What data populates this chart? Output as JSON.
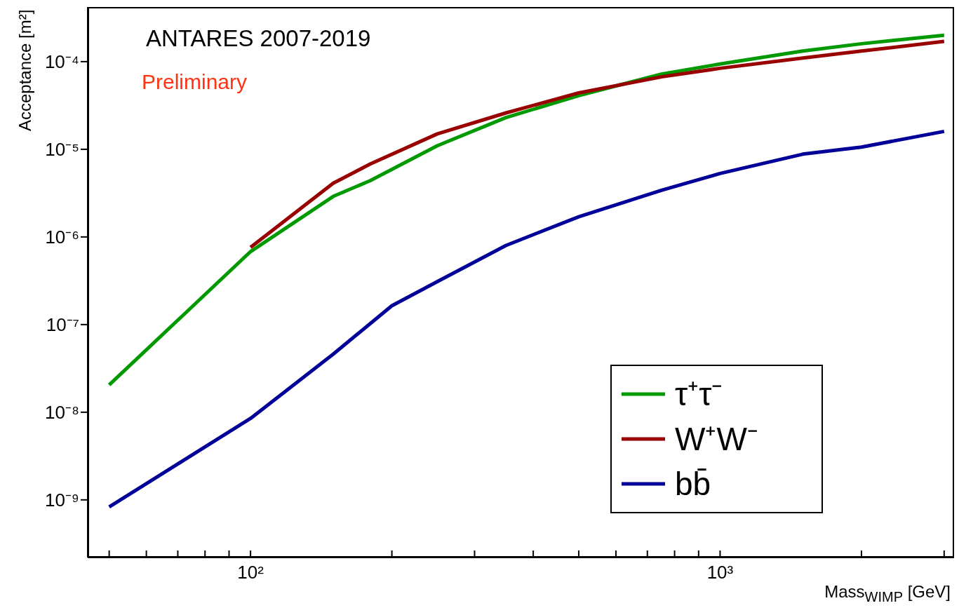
{
  "chart_data": {
    "type": "line",
    "xlabel": "Mass$_{WIMP}$ [GeV]",
    "ylabel": "Acceptance [m²]",
    "annotations": [
      "ANTARES 2007-2019",
      "Preliminary"
    ],
    "log": "xy",
    "xlim": [
      45,
      3150
    ],
    "ylim": [
      2.2e-10,
      0.00042
    ],
    "xticks": [
      {
        "value": 50,
        "label": null
      },
      {
        "value": 60,
        "label": null
      },
      {
        "value": 70,
        "label": null
      },
      {
        "value": 80,
        "label": null
      },
      {
        "value": 90,
        "label": null
      },
      {
        "value": 100,
        "label": "10²"
      },
      {
        "value": 200,
        "label": null
      },
      {
        "value": 300,
        "label": null
      },
      {
        "value": 400,
        "label": null
      },
      {
        "value": 500,
        "label": null
      },
      {
        "value": 600,
        "label": null
      },
      {
        "value": 700,
        "label": null
      },
      {
        "value": 800,
        "label": null
      },
      {
        "value": 900,
        "label": null
      },
      {
        "value": 1000,
        "label": "10³"
      },
      {
        "value": 2000,
        "label": null
      },
      {
        "value": 3000,
        "label": null
      }
    ],
    "yticks": [
      {
        "value": 1e-09,
        "label": "10⁻⁹"
      },
      {
        "value": 1e-08,
        "label": "10⁻⁸"
      },
      {
        "value": 1e-07,
        "label": "10⁻⁷"
      },
      {
        "value": 1e-06,
        "label": "10⁻⁶"
      },
      {
        "value": 1e-05,
        "label": "10⁻⁵"
      },
      {
        "value": 0.0001,
        "label": "10⁻⁴"
      }
    ],
    "grid": false,
    "legend": "bottom right",
    "marker": "none",
    "line_style": "solid",
    "series": [
      {
        "name": "τ⁺τ⁻",
        "color": "#009900",
        "x": [
          50,
          100,
          150,
          180,
          250,
          350,
          500,
          750,
          1000,
          1500,
          2000,
          3000
        ],
        "values": [
          2.05e-08,
          6.8e-07,
          2.9e-06,
          4.4e-06,
          1.1e-05,
          2.3e-05,
          4.1e-05,
          7.2e-05,
          9.4e-05,
          0.000132,
          0.00016,
          0.0002
        ]
      },
      {
        "name": "W⁺W⁻",
        "color": "#990000",
        "x": [
          100,
          150,
          180,
          250,
          350,
          500,
          750,
          1000,
          1500,
          2000,
          3000
        ],
        "values": [
          7.6e-07,
          4.1e-06,
          6.8e-06,
          1.5e-05,
          2.6e-05,
          4.4e-05,
          6.7e-05,
          8.4e-05,
          0.00011,
          0.000132,
          0.00017
        ]
      },
      {
        "name": "bb̄",
        "color": "#000099",
        "x": [
          50,
          100,
          150,
          200,
          250,
          350,
          500,
          750,
          1000,
          1500,
          2000,
          3000
        ],
        "values": [
          8.3e-10,
          8.5e-09,
          4.6e-08,
          1.64e-07,
          3.1e-07,
          8e-07,
          1.7e-06,
          3.4e-06,
          5.3e-06,
          8.8e-06,
          1.06e-05,
          1.6e-05
        ]
      }
    ]
  }
}
